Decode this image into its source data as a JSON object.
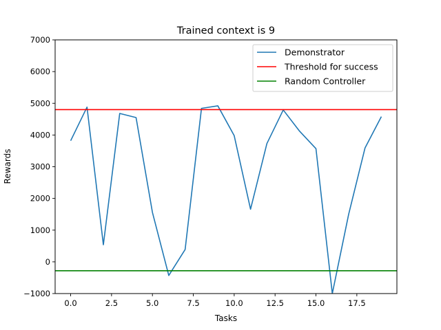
{
  "chart_data": {
    "type": "line",
    "title": "Trained context is 9",
    "xlabel": "Tasks",
    "ylabel": "Rewards",
    "xlim": [
      -0.95,
      19.95
    ],
    "ylim": [
      -1000,
      7000
    ],
    "xticks": [
      0.0,
      2.5,
      5.0,
      7.5,
      10.0,
      12.5,
      15.0,
      17.5
    ],
    "xtick_labels": [
      "0.0",
      "2.5",
      "5.0",
      "7.5",
      "10.0",
      "12.5",
      "15.0",
      "17.5"
    ],
    "yticks": [
      -1000,
      0,
      1000,
      2000,
      3000,
      4000,
      5000,
      6000,
      7000
    ],
    "ytick_labels": [
      "−1000",
      "0",
      "1000",
      "2000",
      "3000",
      "4000",
      "5000",
      "6000",
      "7000"
    ],
    "grid": false,
    "legend_position": "top-right",
    "series": [
      {
        "name": "Demonstrator",
        "color": "#1f77b4",
        "x": [
          0,
          1,
          2,
          3,
          4,
          5,
          6,
          7,
          8,
          9,
          10,
          11,
          12,
          13,
          14,
          15,
          16,
          17,
          18,
          19
        ],
        "values": [
          3820,
          4880,
          540,
          4680,
          4550,
          1560,
          -430,
          390,
          4840,
          4920,
          3980,
          1660,
          3730,
          4790,
          4120,
          3570,
          -1000,
          1500,
          3590,
          4580
        ]
      },
      {
        "name": "Threshold for success",
        "color": "#ff0000",
        "type": "hline",
        "value": 4800
      },
      {
        "name": "Random Controller",
        "color": "#008000",
        "type": "hline",
        "value": -280
      }
    ]
  }
}
